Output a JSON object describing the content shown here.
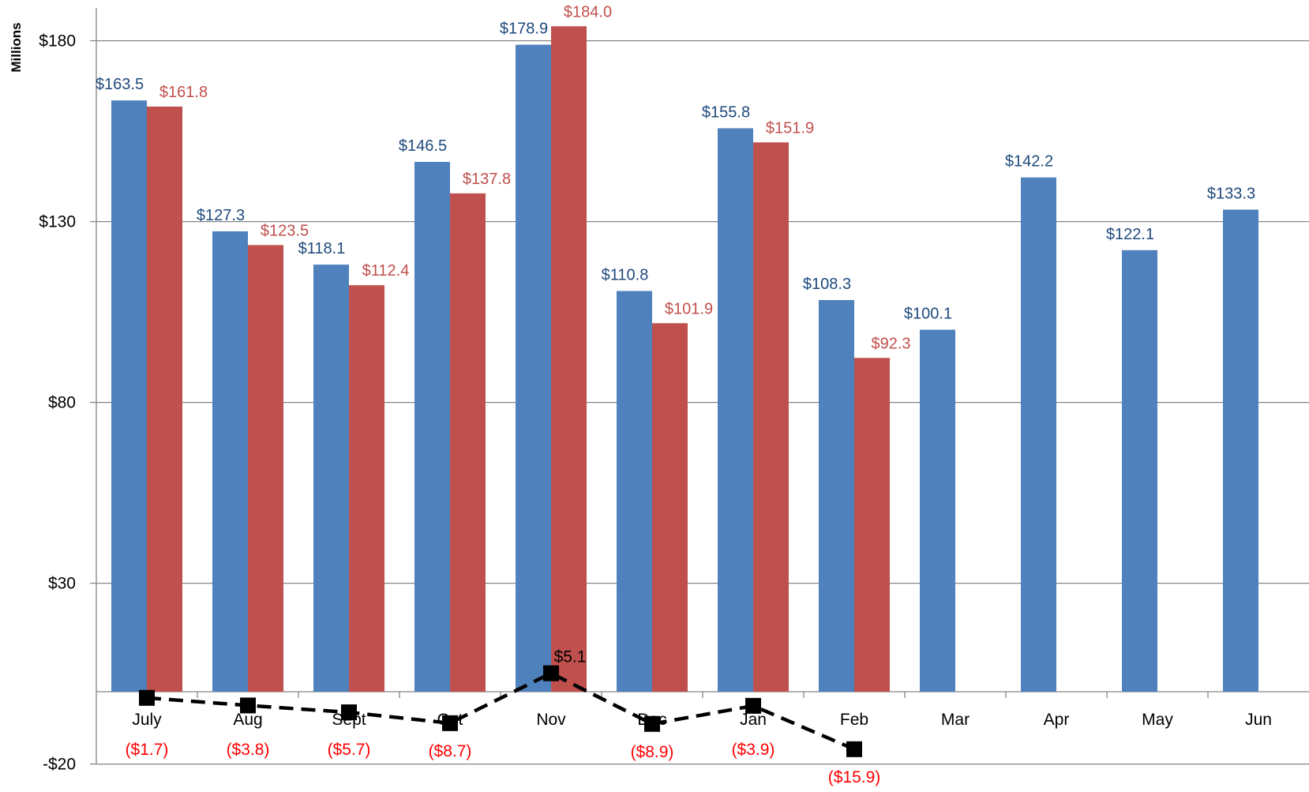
{
  "chart_data": {
    "type": "bar",
    "ylabel": "Millions",
    "yticks": [
      "$180",
      "$130",
      "$80",
      "$30",
      "-$20"
    ],
    "ytick_values": [
      180,
      130,
      80,
      30,
      -20
    ],
    "ylim": [
      -20,
      190
    ],
    "grid": true,
    "legend": "none",
    "categories": [
      "July",
      "Aug",
      "Sept",
      "Oct",
      "Nov",
      "Dec",
      "Jan",
      "Feb",
      "Mar",
      "Apr",
      "May",
      "Jun"
    ],
    "series": [
      {
        "type": "bar",
        "color": "#4F81BD",
        "label_color": "#1F497D",
        "values": [
          163.5,
          127.3,
          118.1,
          146.5,
          178.9,
          110.8,
          155.8,
          108.3,
          100.1,
          142.2,
          122.1,
          133.3
        ],
        "labels": [
          "$163.5",
          "$127.3",
          "$118.1",
          "$146.5",
          "$178.9",
          "$110.8",
          "$155.8",
          "$108.3",
          "$100.1",
          "$142.2",
          "$122.1",
          "$133.3"
        ]
      },
      {
        "type": "bar",
        "color": "#C0504D",
        "label_color": "#C0504D",
        "values": [
          161.8,
          123.5,
          112.4,
          137.8,
          184.0,
          101.9,
          151.9,
          92.3,
          null,
          null,
          null,
          null
        ],
        "labels": [
          "$161.8",
          "$123.5",
          "$112.4",
          "$137.8",
          "$184.0",
          "$101.9",
          "$151.9",
          "$92.3",
          "",
          "",
          "",
          ""
        ]
      },
      {
        "type": "line",
        "style": "dashed",
        "marker": "square",
        "color": "#000000",
        "values": [
          -1.7,
          -3.8,
          -5.7,
          -8.7,
          5.1,
          -8.9,
          -3.9,
          -15.9,
          null,
          null,
          null,
          null
        ],
        "labels": [
          "($1.7)",
          "($3.8)",
          "($5.7)",
          "($8.7)",
          "$5.1",
          "($8.9)",
          "($3.9)",
          "($15.9)",
          "",
          "",
          "",
          ""
        ],
        "negative_label_color": "#FF0000",
        "positive_label_color": "#000000"
      }
    ]
  }
}
